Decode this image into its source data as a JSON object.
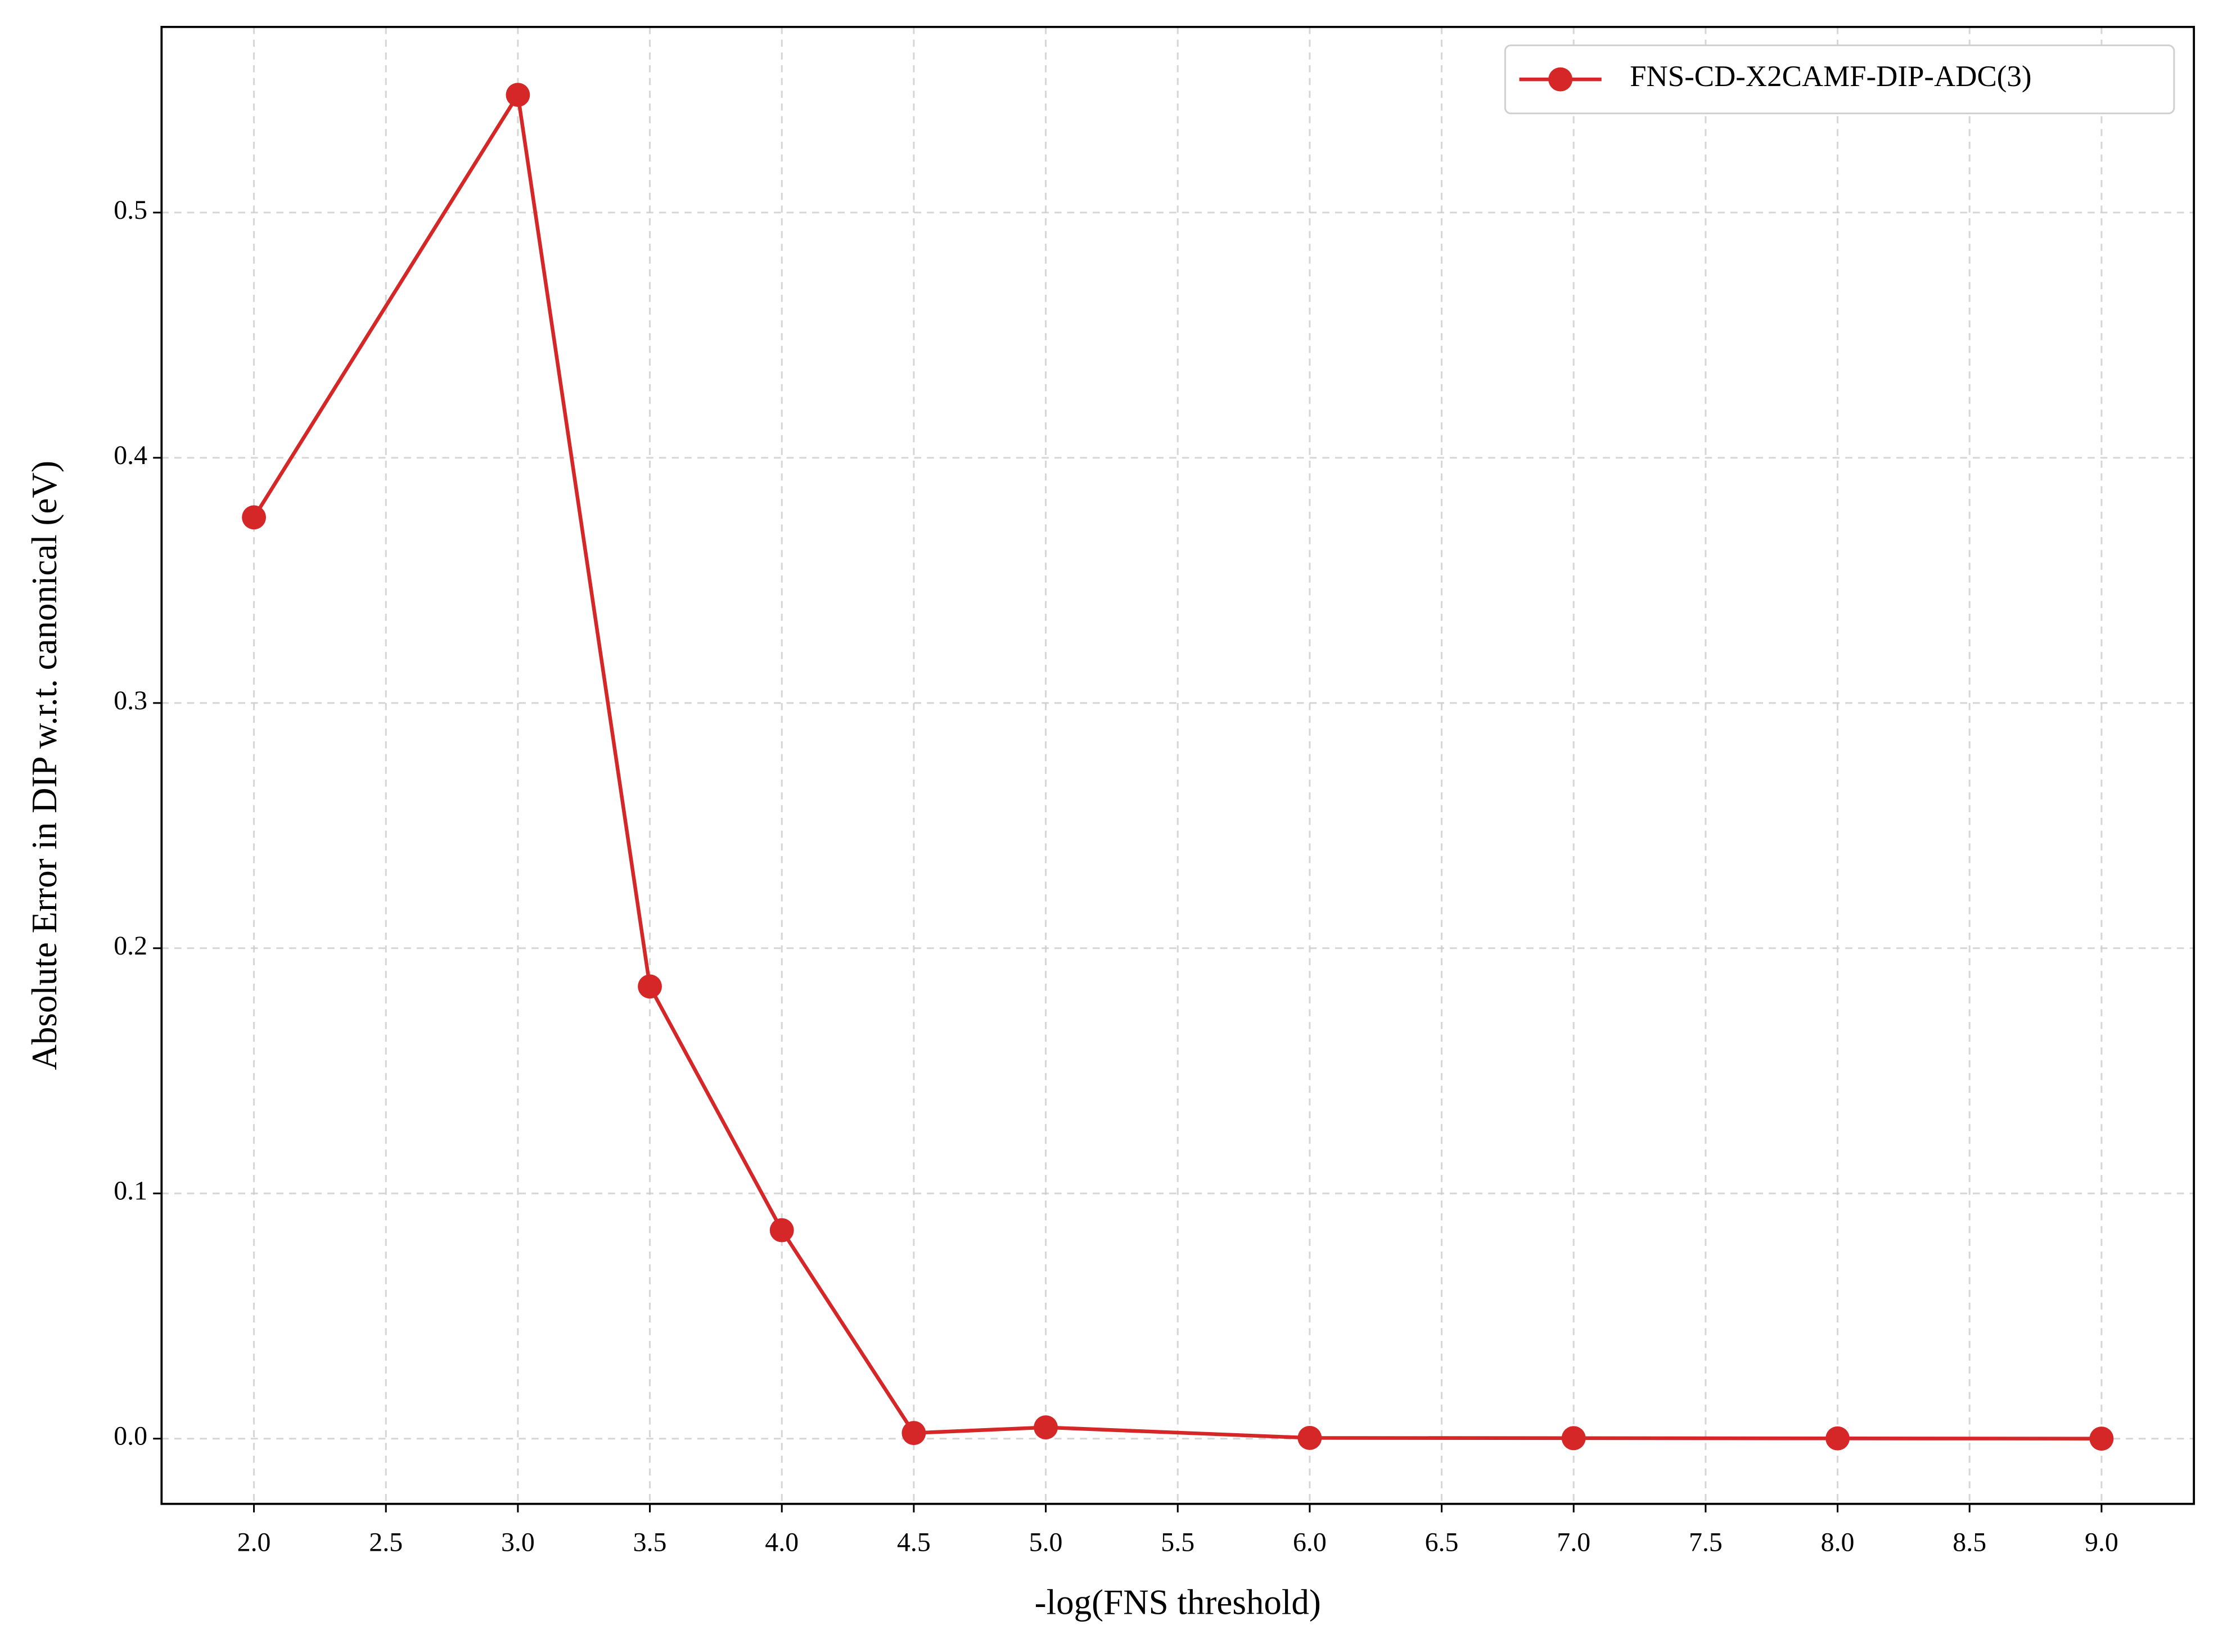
{
  "chart_data": {
    "type": "line",
    "xlabel": "-log(FNS threshold)",
    "ylabel": "Absolute Error in DIP w.r.t. canonical (eV)",
    "x": [
      2.0,
      3.0,
      3.5,
      4.0,
      4.5,
      5.0,
      6.0,
      7.0,
      8.0,
      9.0
    ],
    "series": [
      {
        "name": "FNS-CD-X2CAMF-DIP-ADC(3)",
        "color": "#d62728",
        "values": [
          0.3757,
          0.548,
          0.1844,
          0.085,
          0.0023,
          0.0046,
          0.0003,
          0.0002,
          0.0001,
          0.0
        ]
      }
    ],
    "xlim": [
      1.65,
      9.35
    ],
    "ylim": [
      -0.0266,
      0.5757
    ],
    "xticks": [
      {
        "value": 2.0,
        "label": "2.0"
      },
      {
        "value": 2.5,
        "label": "2.5"
      },
      {
        "value": 3.0,
        "label": "3.0"
      },
      {
        "value": 3.5,
        "label": "3.5"
      },
      {
        "value": 4.0,
        "label": "4.0"
      },
      {
        "value": 4.5,
        "label": "4.5"
      },
      {
        "value": 5.0,
        "label": "5.0"
      },
      {
        "value": 5.5,
        "label": "5.5"
      },
      {
        "value": 6.0,
        "label": "6.0"
      },
      {
        "value": 6.5,
        "label": "6.5"
      },
      {
        "value": 7.0,
        "label": "7.0"
      },
      {
        "value": 7.5,
        "label": "7.5"
      },
      {
        "value": 8.0,
        "label": "8.0"
      },
      {
        "value": 8.5,
        "label": "8.5"
      },
      {
        "value": 9.0,
        "label": "9.0"
      }
    ],
    "yticks": [
      {
        "value": 0.0,
        "label": "0.0"
      },
      0.1,
      0.2,
      0.3,
      0.4,
      0.5
    ],
    "grid": true,
    "legend": "upper right"
  }
}
